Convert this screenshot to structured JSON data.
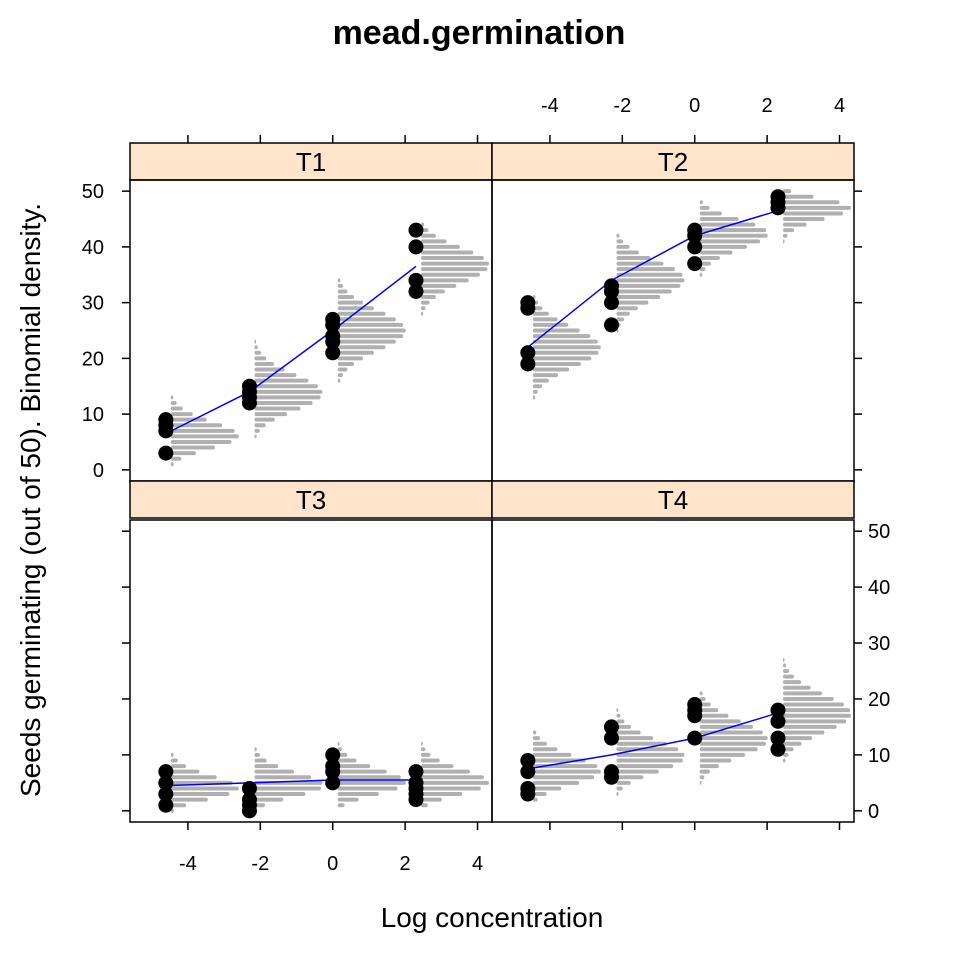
{
  "chart_data": {
    "type": "scatter",
    "title": "mead.germination",
    "xlabel": "Log concentration",
    "ylabel": "Seeds germinating (out of 50).  Binomial density.",
    "xlim": [
      -5.6,
      4.4
    ],
    "ylim": [
      -2,
      52
    ],
    "x_ticks": [
      -4,
      -2,
      0,
      2,
      4
    ],
    "y_ticks": [
      0,
      10,
      20,
      30,
      40,
      50
    ],
    "x_tick_labels": [
      "-4",
      "-2",
      "0",
      "2",
      "4"
    ],
    "y_tick_labels": [
      "0",
      "10",
      "20",
      "30",
      "40",
      "50"
    ],
    "layout": "2x2",
    "colors": {
      "points": "#000000",
      "fit_line": "#0000ff",
      "density": "#b0b0b0",
      "strip": "#ffe4cc"
    },
    "panels": [
      {
        "name": "T1",
        "x": [
          -4.61,
          -2.3,
          0,
          2.3
        ],
        "seeds": [
          [
            3,
            7,
            8,
            9
          ],
          [
            12,
            13,
            14,
            15
          ],
          [
            21,
            23,
            24,
            26,
            27
          ],
          [
            32,
            34,
            40,
            43
          ]
        ],
        "fit": [
          6.5,
          14,
          25,
          36.5
        ]
      },
      {
        "name": "T2",
        "x": [
          -4.61,
          -2.3,
          0,
          2.3
        ],
        "seeds": [
          [
            19,
            21,
            29,
            30
          ],
          [
            26,
            30,
            32,
            33
          ],
          [
            37,
            40,
            42,
            43
          ],
          [
            47,
            48,
            49
          ]
        ],
        "fit": [
          22,
          34,
          42,
          46.5
        ]
      },
      {
        "name": "T3",
        "x": [
          -4.61,
          -2.3,
          0,
          2.3
        ],
        "seeds": [
          [
            1,
            3,
            5,
            7
          ],
          [
            0,
            1,
            2,
            4
          ],
          [
            5,
            7,
            8,
            10
          ],
          [
            2,
            3,
            4,
            5,
            7
          ]
        ],
        "fit": [
          4.5,
          5,
          5.5,
          5.5
        ]
      },
      {
        "name": "T4",
        "x": [
          -4.61,
          -2.3,
          0,
          2.3
        ],
        "seeds": [
          [
            3,
            4,
            7,
            9
          ],
          [
            6,
            7,
            13,
            15
          ],
          [
            13,
            17,
            18,
            19
          ],
          [
            11,
            13,
            16,
            18
          ]
        ],
        "fit": [
          7.5,
          10,
          13,
          17.5
        ]
      }
    ]
  }
}
